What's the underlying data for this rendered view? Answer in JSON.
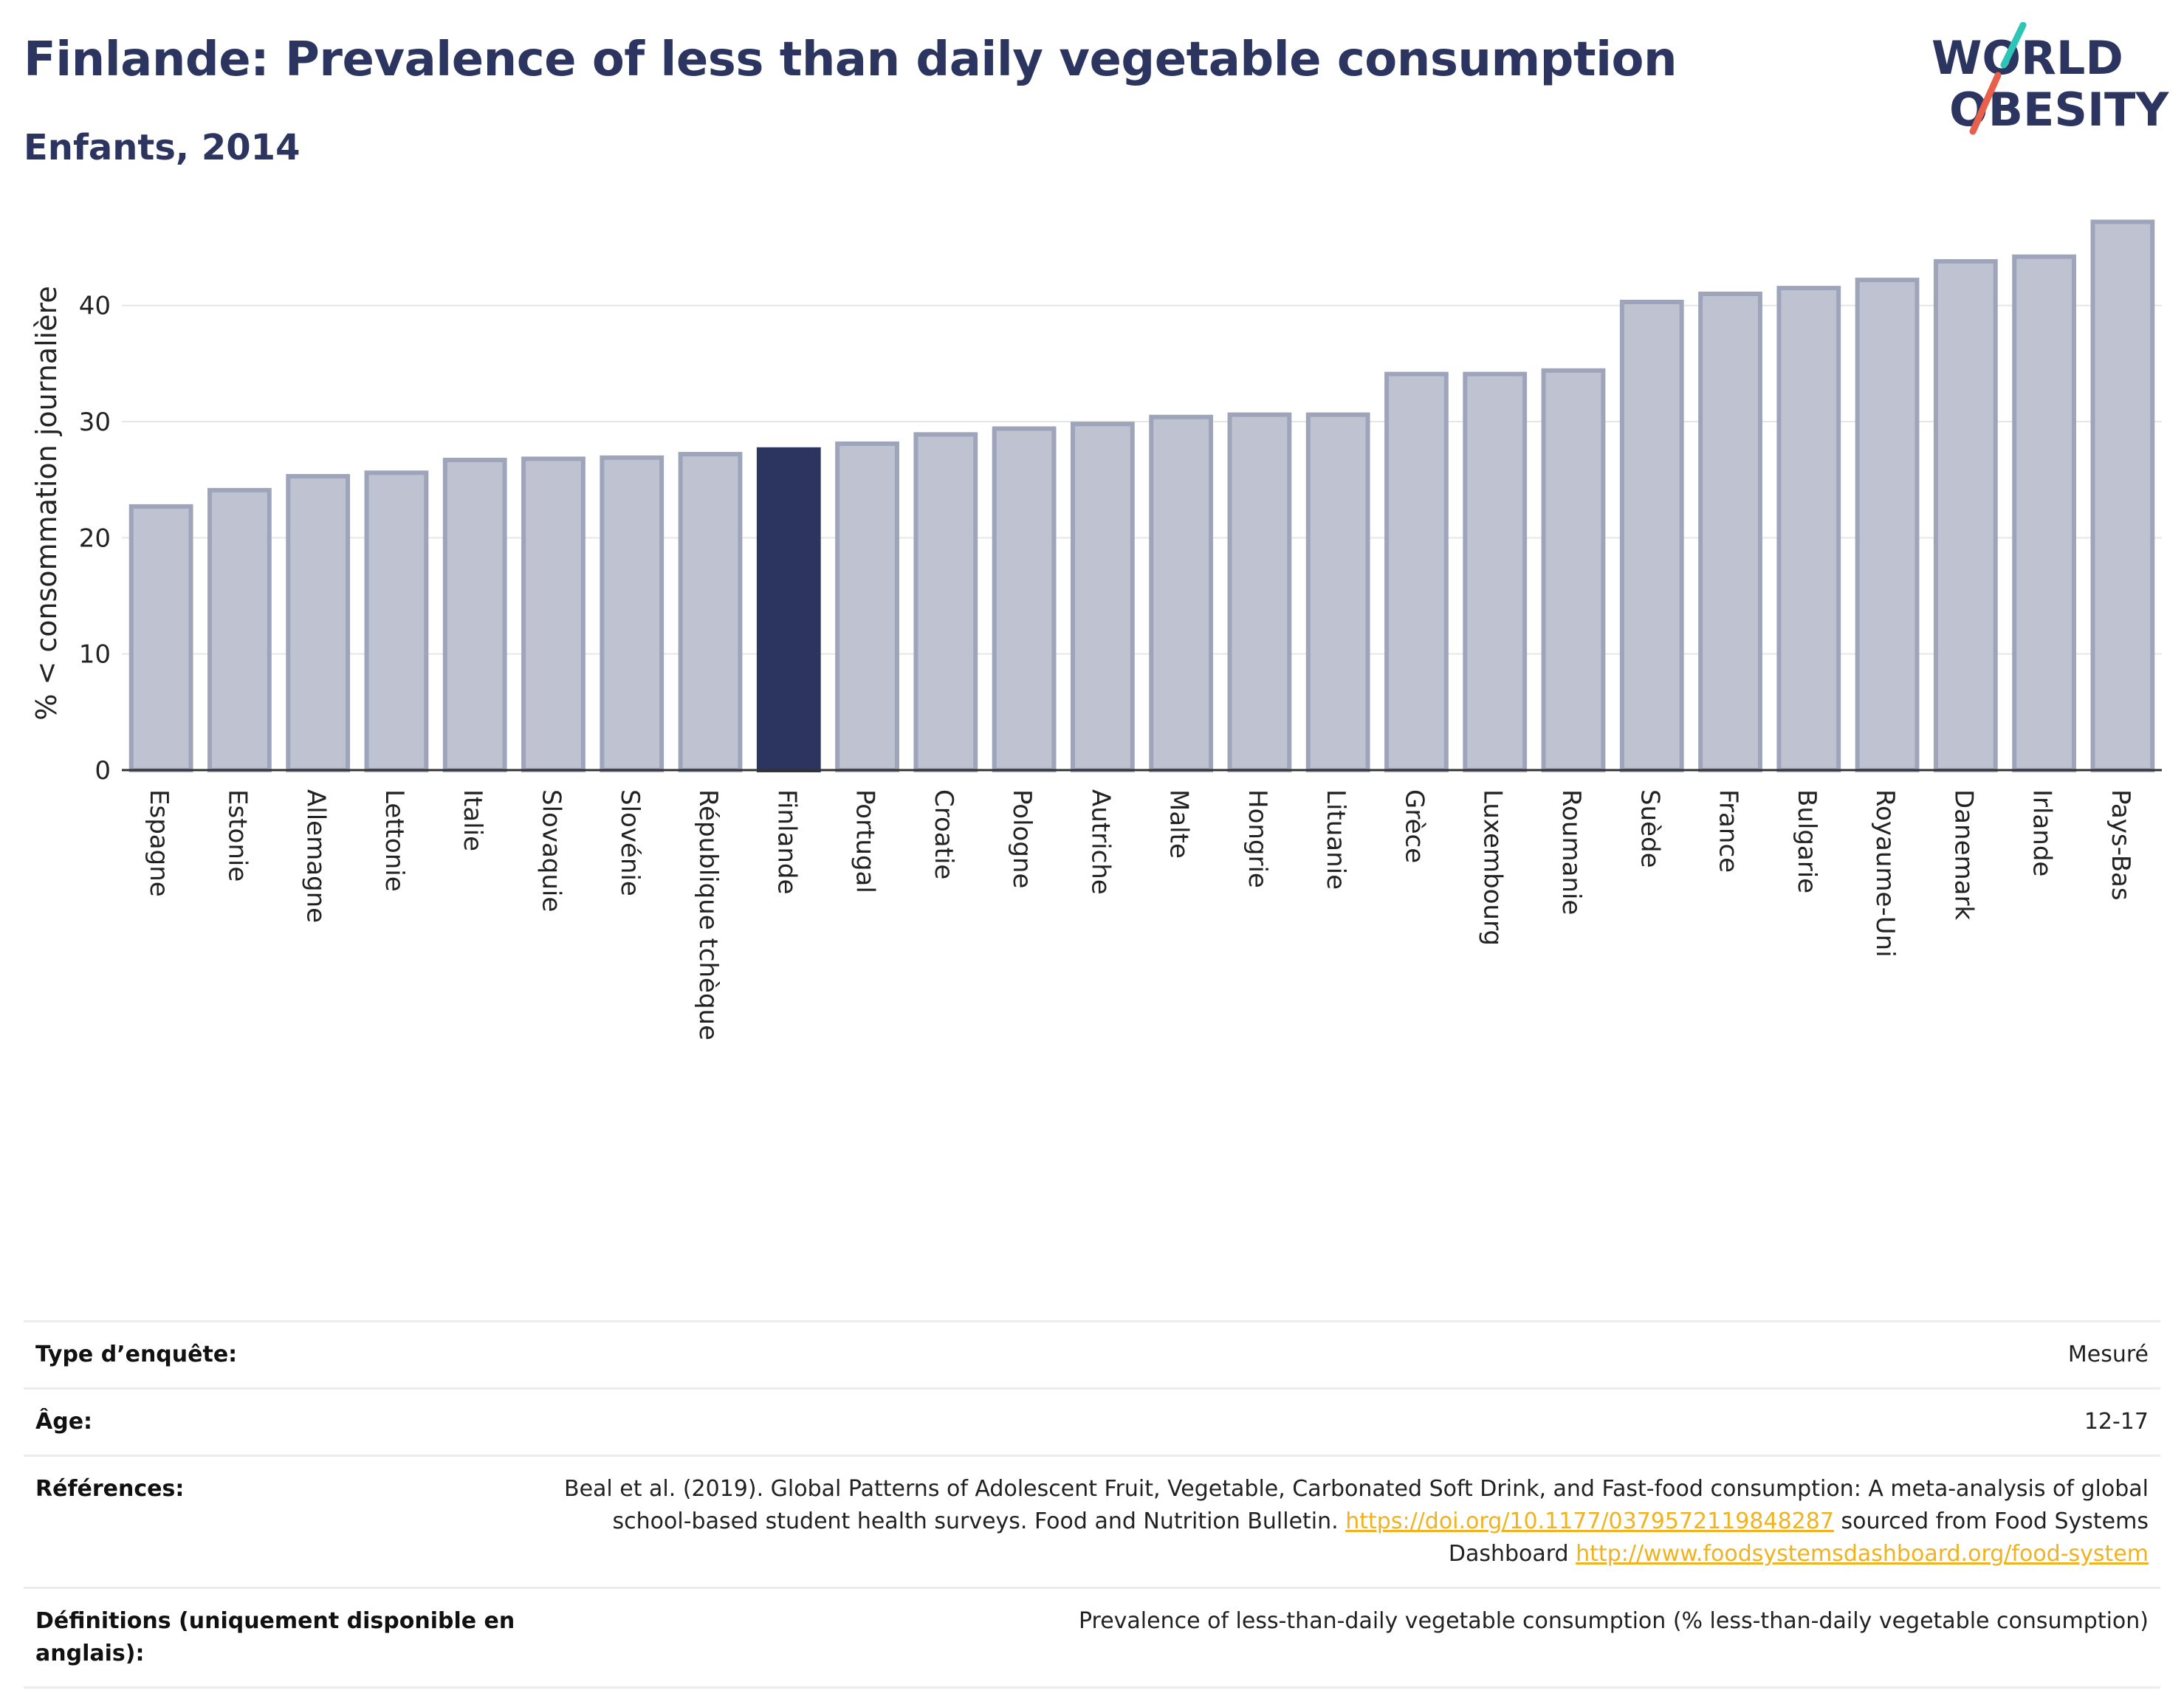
{
  "header": {
    "title": "Finlande: Prevalence of less than daily vegetable consumption",
    "subtitle": "Enfants, 2014"
  },
  "logo": {
    "line1": "WORLD",
    "line2": "OBESITY",
    "slash_colors": [
      "#2ec4b6",
      "#e8604c"
    ]
  },
  "colors": {
    "bar": "#bfc3d1",
    "bar_outline": "#9ea4ba",
    "highlight": "#2b3560",
    "axis": "#333333",
    "grid": "#e6e6e6",
    "link": "#f0b21d"
  },
  "chart_data": {
    "type": "bar",
    "ylabel": "% < consommation journalière",
    "ylim": [
      0,
      48.5
    ],
    "yticks": [
      0,
      10,
      20,
      30,
      40
    ],
    "grid": true,
    "highlight": "Finlande",
    "categories": [
      "Espagne",
      "Estonie",
      "Allemagne",
      "Lettonie",
      "Italie",
      "Slovaquie",
      "Slovénie",
      "République tchèque",
      "Finlande",
      "Portugal",
      "Croatie",
      "Pologne",
      "Autriche",
      "Malte",
      "Hongrie",
      "Lituanie",
      "Grèce",
      "Luxembourg",
      "Roumanie",
      "Suède",
      "France",
      "Bulgarie",
      "Royaume-Uni",
      "Danemark",
      "Irlande",
      "Pays-Bas"
    ],
    "values": [
      22.7,
      24.1,
      25.3,
      25.6,
      26.7,
      26.8,
      26.9,
      27.2,
      27.6,
      28.1,
      28.9,
      29.4,
      29.8,
      30.4,
      30.6,
      30.6,
      34.1,
      34.1,
      34.4,
      40.3,
      41.0,
      41.5,
      42.2,
      43.8,
      44.2,
      47.2
    ]
  },
  "info": [
    {
      "key": "Type d’enquête:",
      "value": "Mesuré"
    },
    {
      "key": "Âge:",
      "value": "12-17"
    },
    {
      "key": "Références:",
      "value_pre": "Beal et al. (2019). Global Patterns of Adolescent Fruit, Vegetable, Carbonated Soft Drink, and Fast-food consumption: A meta-analysis of global school-based student health surveys. Food and Nutrition Bulletin.",
      "link1": "https://doi.org/10.1177/0379572119848287",
      "value_mid": "sourced from Food Systems Dashboard",
      "link2": "http://www.foodsystemsdashboard.org/food-system"
    },
    {
      "key": "Définitions (uniquement disponible en anglais):",
      "value": "Prevalence of less-than-daily vegetable consumption (% less-than-daily vegetable consumption)"
    }
  ]
}
